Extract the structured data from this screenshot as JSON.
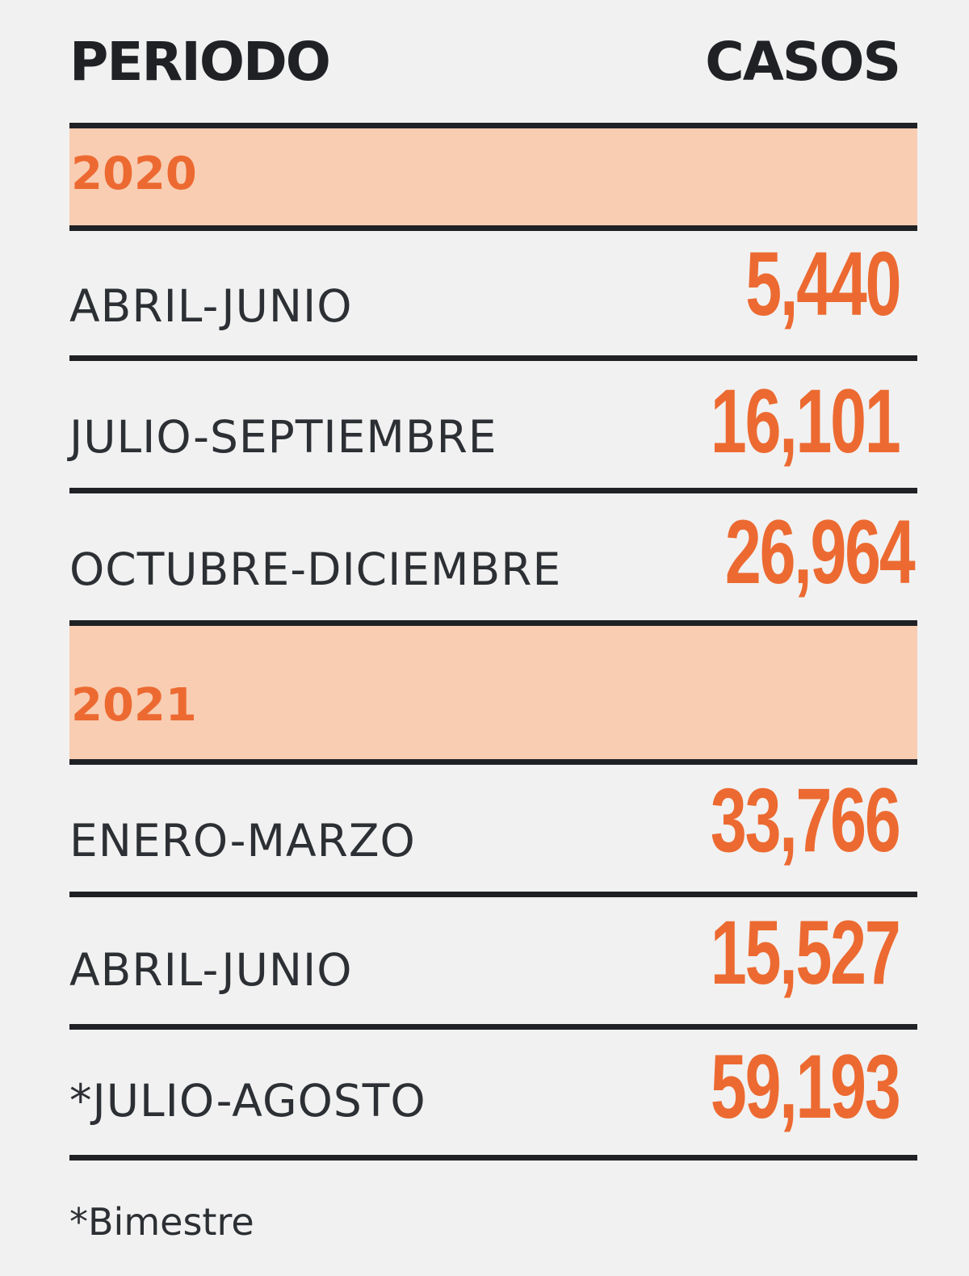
{
  "header": {
    "period": "PERIODO",
    "cases": "CASOS"
  },
  "chart_data": {
    "type": "table",
    "columns": [
      "PERIODO",
      "CASOS"
    ],
    "groups": [
      {
        "year": "2020",
        "rows": [
          {
            "period": "ABRIL-JUNIO",
            "cases": "5,440",
            "value": 5440
          },
          {
            "period": "JULIO-SEPTIEMBRE",
            "cases": "16,101",
            "value": 16101
          },
          {
            "period": "OCTUBRE-DICIEMBRE",
            "cases": "26,964",
            "value": 26964
          }
        ]
      },
      {
        "year": "2021",
        "rows": [
          {
            "period": "ENERO-MARZO",
            "cases": "33,766",
            "value": 33766
          },
          {
            "period": "ABRIL-JUNIO",
            "cases": "15,527",
            "value": 15527
          },
          {
            "period": "*JULIO-AGOSTO",
            "cases": "59,193",
            "value": 59193
          }
        ]
      }
    ],
    "footnote": "*Bimestre"
  },
  "colors": {
    "accent": "#ec6a31",
    "band": "#f9cdb2",
    "text": "#2c2f33",
    "rule": "#1f2125",
    "background": "#f1f1f1"
  }
}
